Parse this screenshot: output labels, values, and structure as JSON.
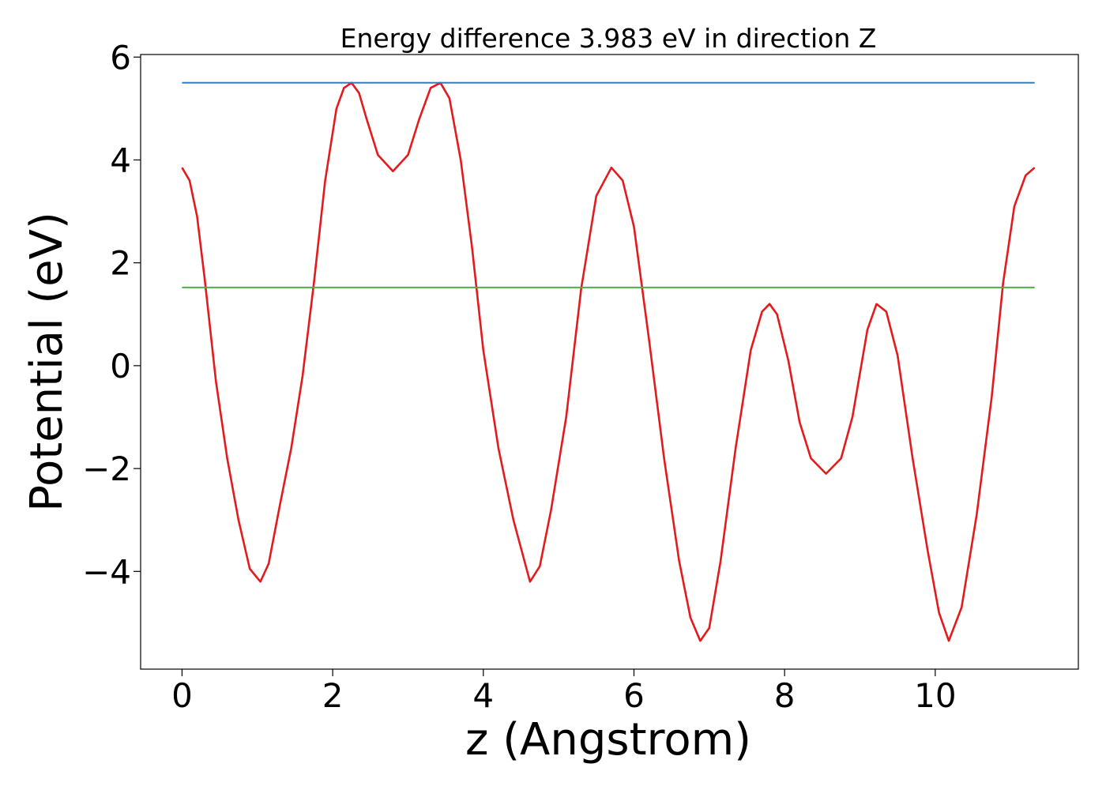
{
  "chart_data": {
    "type": "line",
    "title": "Energy difference 3.983 eV in direction Z",
    "xlabel": "z (Angstrom)",
    "ylabel": "Potential (eV)",
    "xlim": [
      -0.55,
      11.9
    ],
    "ylim": [
      -5.9,
      6.05
    ],
    "xticks": [
      0,
      2,
      4,
      6,
      8,
      10
    ],
    "xtick_labels": [
      "0",
      "2",
      "4",
      "6",
      "8",
      "10"
    ],
    "yticks": [
      -4,
      -2,
      0,
      2,
      4,
      6
    ],
    "ytick_labels": [
      "−4",
      "−2",
      "0",
      "2",
      "4",
      "6"
    ],
    "grid": false,
    "series": [
      {
        "color": "#e41a1c",
        "x": [
          0,
          0.1,
          0.2,
          0.3,
          0.45,
          0.6,
          0.75,
          0.9,
          1.04,
          1.15,
          1.3,
          1.45,
          1.6,
          1.75,
          1.9,
          2.05,
          2.15,
          2.25,
          2.35,
          2.45,
          2.6,
          2.8,
          3.0,
          3.15,
          3.3,
          3.43,
          3.55,
          3.7,
          3.85,
          4.0,
          4.2,
          4.4,
          4.62,
          4.75,
          4.9,
          5.1,
          5.3,
          5.5,
          5.7,
          5.85,
          6.0,
          6.2,
          6.4,
          6.6,
          6.75,
          6.88,
          7.0,
          7.15,
          7.35,
          7.55,
          7.7,
          7.8,
          7.9,
          8.05,
          8.2,
          8.35,
          8.55,
          8.75,
          8.9,
          9.1,
          9.22,
          9.35,
          9.5,
          9.7,
          9.9,
          10.05,
          10.18,
          10.35,
          10.55,
          10.75,
          10.9,
          11.05,
          11.2,
          11.32
        ],
        "y": [
          3.85,
          3.6,
          2.9,
          1.7,
          -0.3,
          -1.8,
          -3.0,
          -3.95,
          -4.2,
          -3.85,
          -2.7,
          -1.6,
          -0.2,
          1.6,
          3.6,
          5.0,
          5.4,
          5.5,
          5.3,
          4.8,
          4.1,
          3.78,
          4.1,
          4.8,
          5.4,
          5.5,
          5.2,
          4.0,
          2.3,
          0.3,
          -1.6,
          -3.0,
          -4.2,
          -3.9,
          -2.8,
          -1.0,
          1.5,
          3.3,
          3.85,
          3.6,
          2.7,
          0.5,
          -1.8,
          -3.8,
          -4.9,
          -5.35,
          -5.1,
          -3.8,
          -1.6,
          0.3,
          1.05,
          1.2,
          1.0,
          0.1,
          -1.1,
          -1.8,
          -2.1,
          -1.8,
          -1.0,
          0.7,
          1.2,
          1.05,
          0.2,
          -1.8,
          -3.6,
          -4.8,
          -5.35,
          -4.7,
          -2.9,
          -0.6,
          1.6,
          3.1,
          3.7,
          3.85
        ]
      },
      {
        "color": "#377eb8",
        "x": [
          0,
          11.32
        ],
        "y": [
          5.5,
          5.5
        ]
      },
      {
        "color": "#4daf4a",
        "x": [
          0,
          11.32
        ],
        "y": [
          1.52,
          1.52
        ]
      }
    ]
  }
}
